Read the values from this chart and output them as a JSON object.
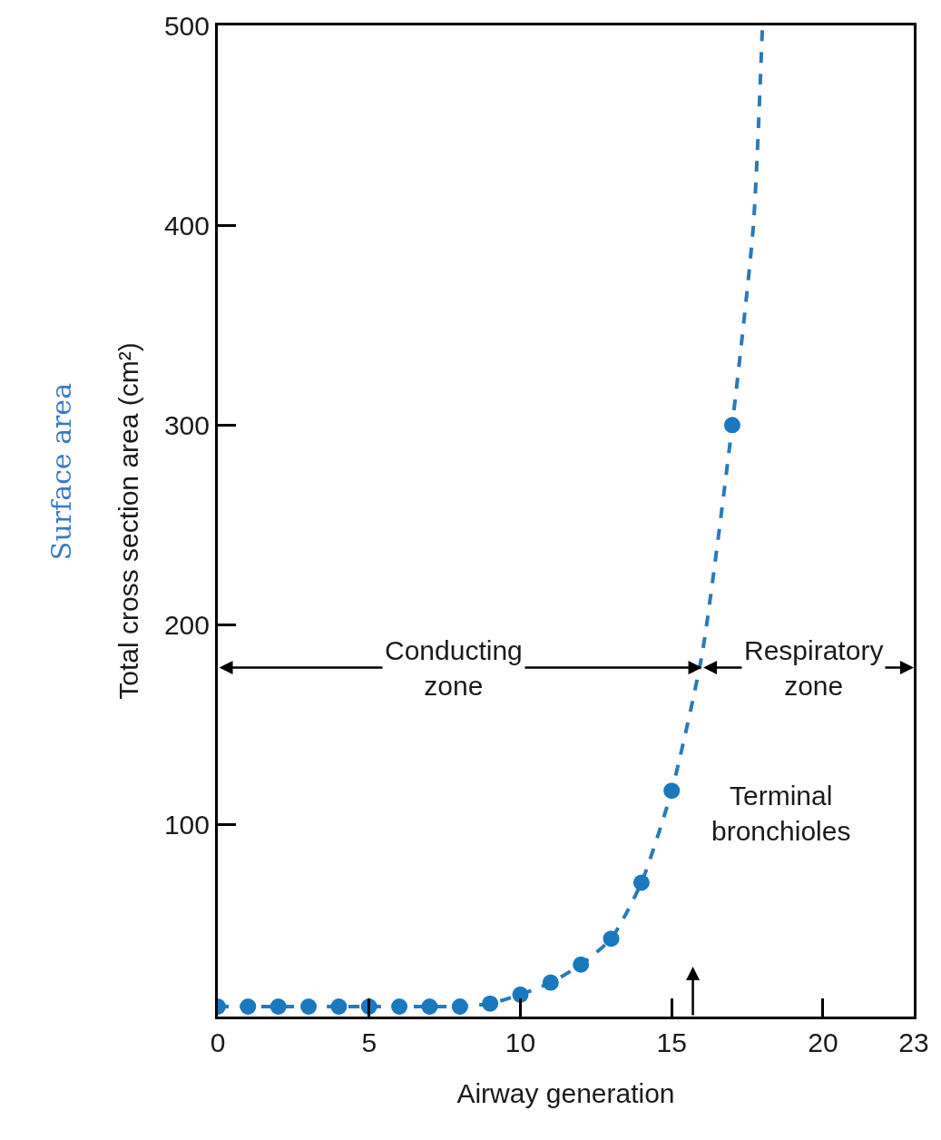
{
  "chart_data": {
    "type": "scatter",
    "xlabel": "Airway generation",
    "ylabel": "Total cross section area (cm²)",
    "xlim": [
      0,
      23
    ],
    "xticks": [
      0,
      5,
      10,
      15,
      20,
      23
    ],
    "ylim": [
      4,
      500
    ],
    "yticks": [
      100,
      200,
      300,
      400,
      500
    ],
    "grid": false,
    "legend": false,
    "series": [
      {
        "type": "line",
        "color": "#2a7ab8",
        "line_style": "dashed",
        "marker": "none",
        "x": [
          0,
          1,
          2,
          3,
          4,
          5,
          6,
          7,
          8,
          9,
          10,
          11,
          12,
          13,
          14,
          15,
          16,
          17,
          17.7,
          18
        ],
        "values": [
          9,
          9,
          9,
          9,
          9,
          9,
          9,
          9,
          9,
          10.5,
          15,
          21,
          30,
          43,
          71,
          117,
          185,
          300,
          400,
          500
        ]
      },
      {
        "type": "scatter",
        "color": "#1a78be",
        "marker": "circle",
        "x": [
          0,
          1,
          2,
          3,
          4,
          5,
          6,
          7,
          8,
          9,
          10,
          11,
          12,
          13,
          14,
          15,
          17
        ],
        "values": [
          9,
          9,
          9,
          9,
          9,
          9,
          9,
          9,
          9,
          10.5,
          15,
          21,
          30,
          43,
          71,
          117,
          300
        ]
      }
    ],
    "annotations": [
      "Conducting zone",
      "Respiratory zone",
      "Terminal bronchioles",
      "Surface area"
    ]
  }
}
